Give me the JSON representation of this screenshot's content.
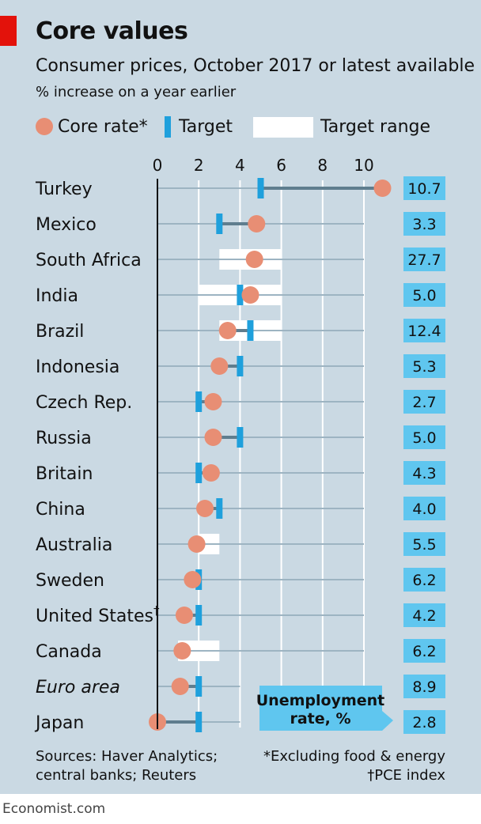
{
  "header": {
    "title": "Core values",
    "subtitle": "Consumer prices, October 2017 or latest available",
    "unit_note": "% increase on a year earlier"
  },
  "legend": {
    "core_rate": "Core rate*",
    "target": "Target",
    "target_range": "Target range"
  },
  "chart_data": {
    "type": "dot-range",
    "title": "Core values",
    "subtitle": "Consumer prices, October 2017 or latest available",
    "xlabel": "% increase on a year earlier",
    "xlim": [
      0,
      11
    ],
    "xticks": [
      0,
      2,
      4,
      6,
      8,
      10
    ],
    "callout": "Unemployment rate, %",
    "series_names": {
      "core": "Core rate*",
      "target": "Target",
      "range": "Target range",
      "unemployment": "Unemployment rate, %"
    },
    "rows": [
      {
        "country": "Turkey",
        "sup": "",
        "italic": false,
        "core": 10.9,
        "target": 5,
        "range": null,
        "unemployment": "10.7"
      },
      {
        "country": "Mexico",
        "sup": "",
        "italic": false,
        "core": 4.8,
        "target": 3,
        "range": null,
        "unemployment": "3.3"
      },
      {
        "country": "South Africa",
        "sup": "",
        "italic": false,
        "core": 4.7,
        "target": null,
        "range": [
          3,
          6
        ],
        "unemployment": "27.7"
      },
      {
        "country": "India",
        "sup": "",
        "italic": false,
        "core": 4.5,
        "target": 4,
        "range": [
          2,
          6
        ],
        "unemployment": "5.0"
      },
      {
        "country": "Brazil",
        "sup": "",
        "italic": false,
        "core": 3.4,
        "target": 4.5,
        "range": [
          3,
          6
        ],
        "unemployment": "12.4"
      },
      {
        "country": "Indonesia",
        "sup": "",
        "italic": false,
        "core": 3.0,
        "target": 4,
        "range": null,
        "unemployment": "5.3"
      },
      {
        "country": "Czech Rep.",
        "sup": "",
        "italic": false,
        "core": 2.7,
        "target": 2,
        "range": null,
        "unemployment": "2.7"
      },
      {
        "country": "Russia",
        "sup": "",
        "italic": false,
        "core": 2.7,
        "target": 4,
        "range": null,
        "unemployment": "5.0"
      },
      {
        "country": "Britain",
        "sup": "",
        "italic": false,
        "core": 2.6,
        "target": 2,
        "range": null,
        "unemployment": "4.3"
      },
      {
        "country": "China",
        "sup": "",
        "italic": false,
        "core": 2.3,
        "target": 3,
        "range": null,
        "unemployment": "4.0"
      },
      {
        "country": "Australia",
        "sup": "",
        "italic": false,
        "core": 1.9,
        "target": null,
        "range": [
          2,
          3
        ],
        "unemployment": "5.5"
      },
      {
        "country": "Sweden",
        "sup": "",
        "italic": false,
        "core": 1.7,
        "target": 2,
        "range": null,
        "unemployment": "6.2"
      },
      {
        "country": "United States",
        "sup": "†",
        "italic": false,
        "core": 1.3,
        "target": 2,
        "range": null,
        "unemployment": "4.2"
      },
      {
        "country": "Canada",
        "sup": "",
        "italic": false,
        "core": 1.2,
        "target": null,
        "range": [
          1,
          3
        ],
        "unemployment": "6.2"
      },
      {
        "country": "Euro area",
        "sup": "",
        "italic": true,
        "core": 1.1,
        "target": 2,
        "range": null,
        "unemployment": "8.9"
      },
      {
        "country": "Japan",
        "sup": "",
        "italic": false,
        "core": 0.0,
        "target": 2,
        "range": null,
        "unemployment": "2.8"
      }
    ]
  },
  "footer": {
    "sources_line1": "Sources: Haver Analytics;",
    "sources_line2": "central banks; Reuters",
    "note_line1": "*Excluding food & energy",
    "note_line2": "†PCE index",
    "credit": "Economist.com"
  },
  "colors": {
    "background": "#cad9e3",
    "core_dot": "#e88e74",
    "target": "#1fa0dc",
    "range": "#ffffff",
    "connector": "#5f7d8e",
    "gridline": "#9db4c2",
    "callout": "#5fc6ef",
    "brand_red": "#e3120b"
  }
}
